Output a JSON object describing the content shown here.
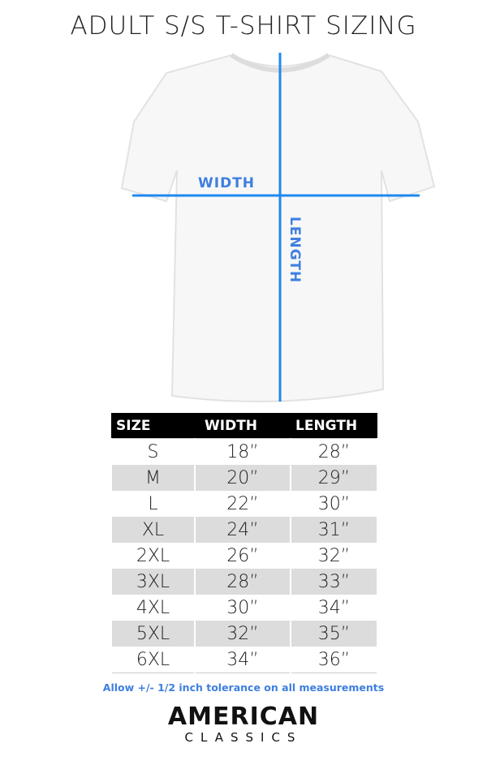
{
  "title": "ADULT S/S T-SHIRT SIZING",
  "diagram": {
    "width_label": "WIDTH",
    "length_label": "LENGTH",
    "accent_color": "#3d7fe0"
  },
  "table": {
    "headers": [
      "SIZE",
      "WIDTH",
      "LENGTH"
    ],
    "rows": [
      [
        "S",
        "18”",
        "28”"
      ],
      [
        "M",
        "20”",
        "29”"
      ],
      [
        "L",
        "22”",
        "30”"
      ],
      [
        "XL",
        "24”",
        "31”"
      ],
      [
        "2XL",
        "26”",
        "32”"
      ],
      [
        "3XL",
        "28”",
        "33”"
      ],
      [
        "4XL",
        "30”",
        "34”"
      ],
      [
        "5XL",
        "32”",
        "35”"
      ],
      [
        "6XL",
        "34”",
        "36”"
      ]
    ]
  },
  "note": "Allow +/- 1/2 inch tolerance on all measurements",
  "brand": {
    "line1": "AMERICAN",
    "line2": "CLASSICS"
  }
}
